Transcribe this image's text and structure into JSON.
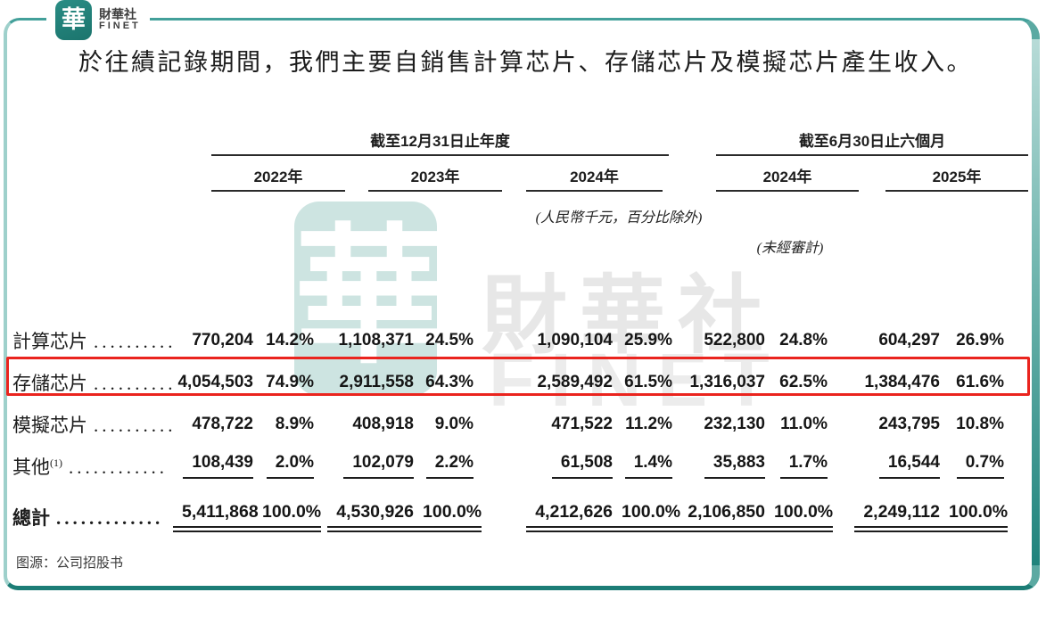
{
  "brand": {
    "logo_glyph": "華",
    "name": "財華社",
    "name_en": "FINET"
  },
  "title": "於往績記錄期間，我們主要自銷售計算芯片、存儲芯片及模擬芯片產生收入。",
  "watermark": {
    "tile_glyph": "華",
    "text_cn": "財華社",
    "text_en": "FINET"
  },
  "table": {
    "group_headers": [
      {
        "label": "截至12月31日止年度"
      },
      {
        "label": "截至6月30日止六個月"
      }
    ],
    "year_headers": [
      "2022年",
      "2023年",
      "2024年",
      "2024年",
      "2025年"
    ],
    "unit_note": "(人民幣千元，百分比除外)",
    "audit_note": "(未經審計)",
    "rows": [
      {
        "label": "計算芯片",
        "sup": "",
        "leader": "..........",
        "cells": [
          "770,204",
          "14.2%",
          "1,108,371",
          "24.5%",
          "1,090,104",
          "25.9%",
          "522,800",
          "24.8%",
          "604,297",
          "26.9%"
        ],
        "highlighted": false,
        "underline": false
      },
      {
        "label": "存儲芯片",
        "sup": "",
        "leader": "..........",
        "cells": [
          "4,054,503",
          "74.9%",
          "2,911,558",
          "64.3%",
          "2,589,492",
          "61.5%",
          "1,316,037",
          "62.5%",
          "1,384,476",
          "61.6%"
        ],
        "highlighted": true,
        "underline": false
      },
      {
        "label": "模擬芯片",
        "sup": "",
        "leader": "..........",
        "cells": [
          "478,722",
          "8.9%",
          "408,918",
          "9.0%",
          "471,522",
          "11.2%",
          "232,130",
          "11.0%",
          "243,795",
          "10.8%"
        ],
        "highlighted": false,
        "underline": false
      },
      {
        "label": "其他",
        "sup": "(1)",
        "leader": "............",
        "cells": [
          "108,439",
          "2.0%",
          "102,079",
          "2.2%",
          "61,508",
          "1.4%",
          "35,883",
          "1.7%",
          "16,544",
          "0.7%"
        ],
        "highlighted": false,
        "underline": true
      }
    ],
    "total_row": {
      "label": "總計",
      "sup": "",
      "leader": ".............",
      "cells": [
        "5,411,868",
        "100.0%",
        "4,530,926",
        "100.0%",
        "4,212,626",
        "100.0%",
        "2,106,850",
        "100.0%",
        "2,249,112",
        "100.0%"
      ]
    }
  },
  "source_note": "图源：公司招股书",
  "colors": {
    "teal_dark": "#1c7d76",
    "teal_mid": "#43a09a",
    "teal_light": "#9ed0cb",
    "logo_teal": "#1f7e77",
    "highlight_red": "#ea241e",
    "text": "#1d1d1d",
    "watermark_gray": "#e7e7e7",
    "watermark_teal": "#cde4e1"
  }
}
